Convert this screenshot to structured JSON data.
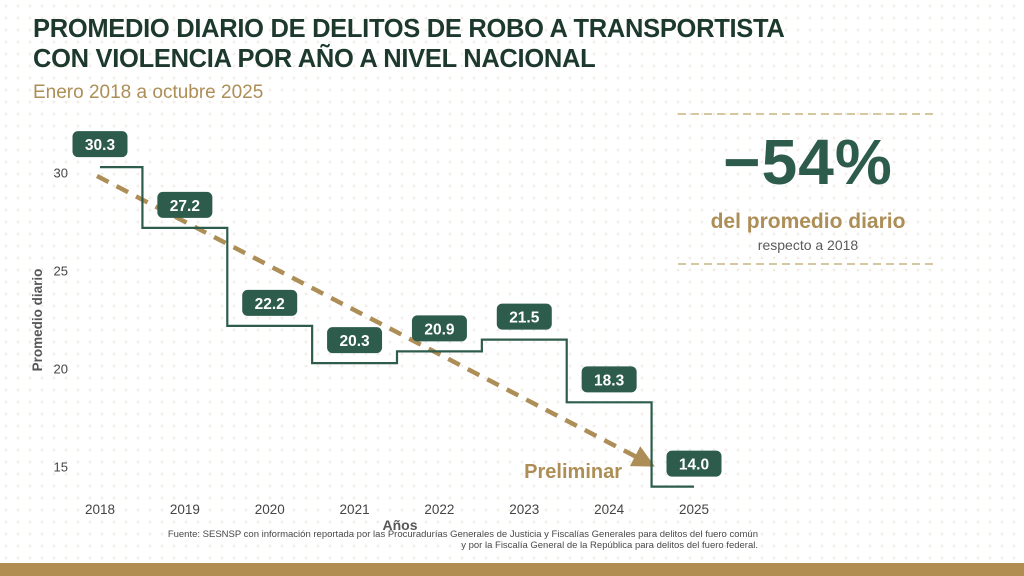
{
  "header": {
    "title_line1": "PROMEDIO DIARIO DE DELITOS DE ROBO A TRANSPORTISTA",
    "title_line2": "CON VIOLENCIA POR AÑO A NIVEL NACIONAL",
    "subtitle": "Enero 2018 a octubre 2025"
  },
  "highlight": {
    "value": "−54%",
    "label": "del promedio diario",
    "sublabel": "respecto a 2018"
  },
  "chart_data": {
    "type": "line",
    "subtype": "step-mid",
    "categories": [
      "2018",
      "2019",
      "2020",
      "2021",
      "2022",
      "2023",
      "2024",
      "2025"
    ],
    "values": [
      30.3,
      27.2,
      22.2,
      20.3,
      20.9,
      21.5,
      18.3,
      14.0
    ],
    "xlabel": "Años",
    "ylabel": "Promedio diario",
    "yticks": [
      15,
      20,
      25,
      30
    ],
    "ylim": [
      12.5,
      32.2
    ],
    "grid": false,
    "legend": false,
    "annotation": "Preliminar",
    "trend": {
      "style": "dashed-arrow",
      "from": {
        "year": "2018",
        "value": 30.3
      },
      "to": {
        "year": "2025",
        "value": 14.0
      }
    }
  },
  "footer": {
    "source_line1": "Fuente: SESNSP con información reportada por las Procuradurías Generales de Justicia y Fiscalías Generales para delitos del fuero común",
    "source_line2": "y por la Fiscalía General de la República para delitos del fuero federal."
  },
  "colors": {
    "green_dark": "#1d392e",
    "green": "#2d5c4c",
    "gold": "#ad8e57",
    "gold_light": "#d5c79f",
    "gray_axis": "#565656",
    "tick_text": "#454545",
    "bar_gold": "#b18d52",
    "label_text": "#ffffff"
  }
}
